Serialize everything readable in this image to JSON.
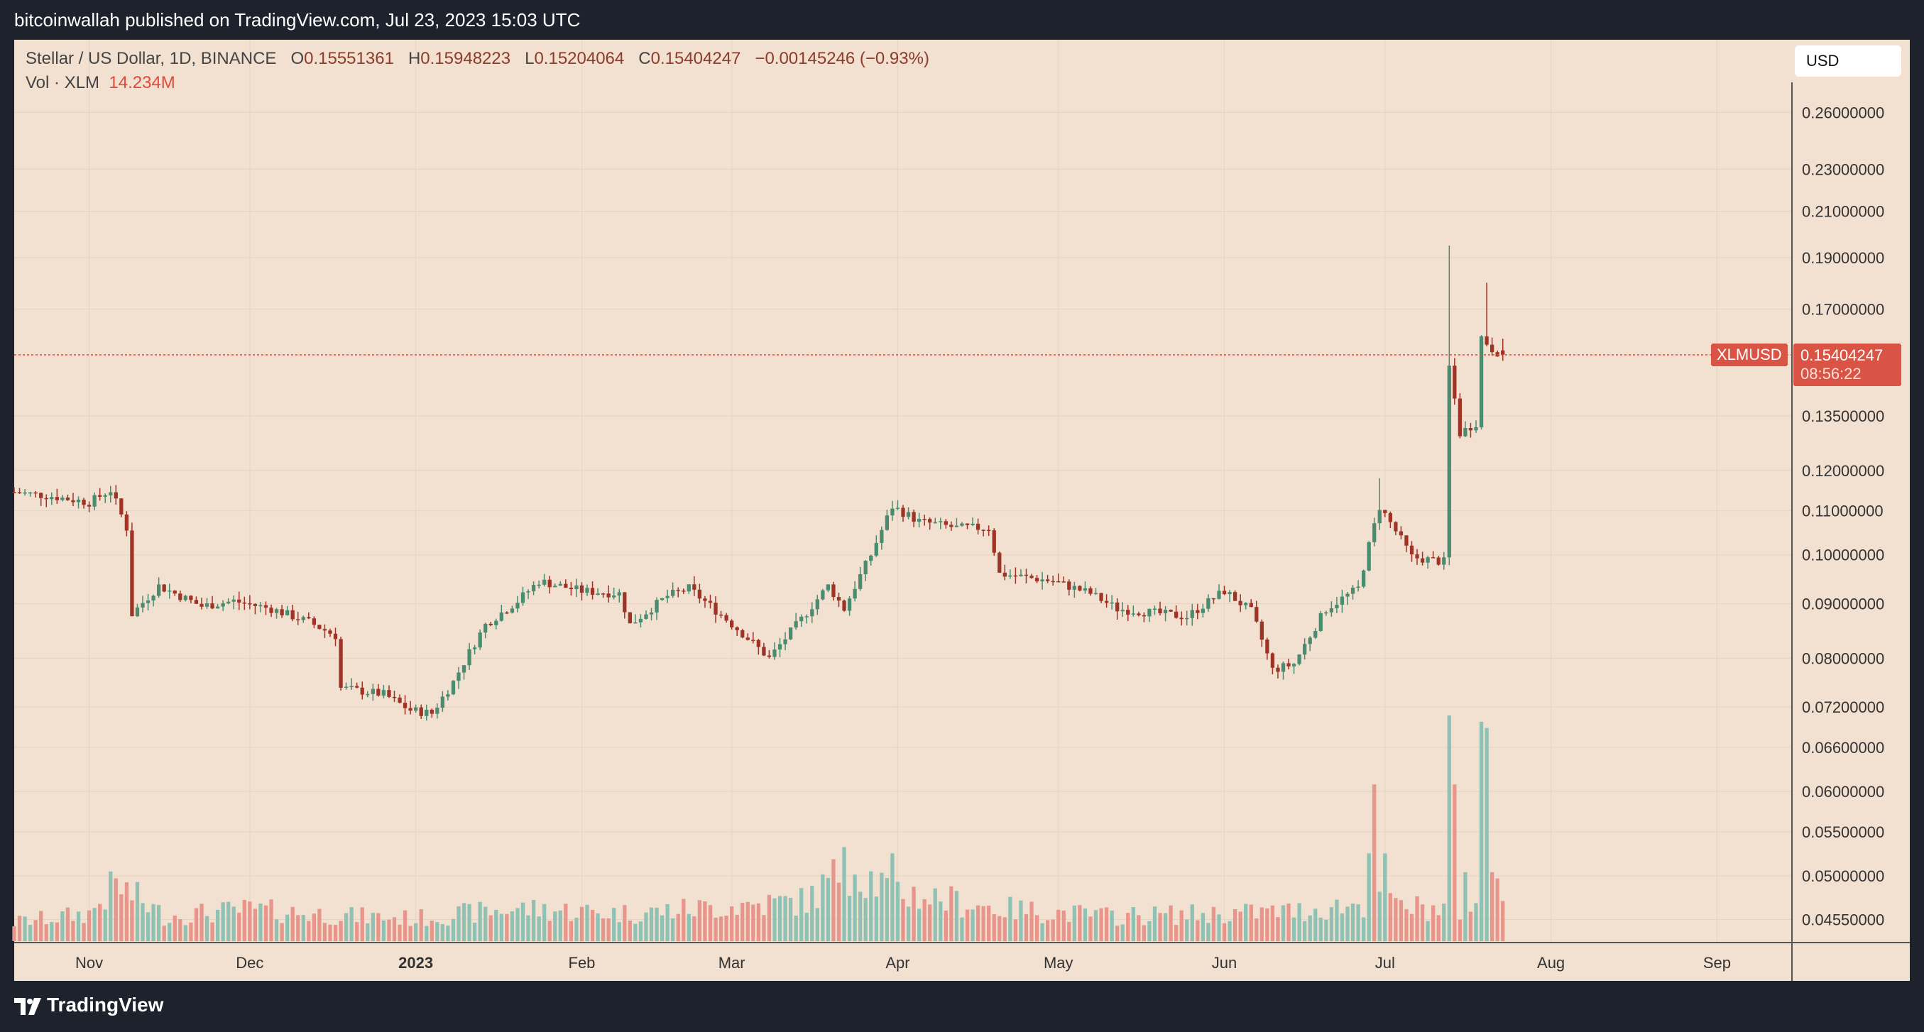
{
  "header": {
    "published": "bitcoinwallah published on TradingView.com, Jul 23, 2023 15:03 UTC"
  },
  "legend": {
    "symbol_line": "Stellar / US Dollar, 1D, BINANCE",
    "o_label": "O",
    "o": "0.15551361",
    "h_label": "H",
    "h": "0.15948223",
    "l_label": "L",
    "l": "0.15204064",
    "c_label": "C",
    "c": "0.15404247",
    "change": "−0.00145246 (−0.93%)",
    "vol_label": "Vol · XLM",
    "vol_value": "14.234M"
  },
  "currency_button": "USD",
  "price_tag": {
    "symbol": "XLMUSD",
    "price": "0.15404247",
    "countdown": "08:56:22"
  },
  "footer": {
    "brand": "TradingView"
  },
  "colors": {
    "up": "#4a8c70",
    "down": "#9e3326",
    "vol_up": "#8fc2b4",
    "vol_down": "#e8968c",
    "price_line": "#e0493c",
    "background": "#f2e0d0"
  },
  "chart_data": {
    "type": "candlestick",
    "symbol": "XLMUSD",
    "interval": "1D",
    "yaxis_ticks": [
      "0.26000000",
      "0.23000000",
      "0.21000000",
      "0.19000000",
      "0.17000000",
      "0.13500000",
      "0.12000000",
      "0.11000000",
      "0.10000000",
      "0.09000000",
      "0.08000000",
      "0.07200000",
      "0.06600000",
      "0.06000000",
      "0.05500000",
      "0.05000000",
      "0.04550000"
    ],
    "yaxis_tick_values": [
      0.26,
      0.23,
      0.21,
      0.19,
      0.17,
      0.135,
      0.12,
      0.11,
      0.1,
      0.09,
      0.08,
      0.072,
      0.066,
      0.06,
      0.055,
      0.05,
      0.0455
    ],
    "yaxis_scale": "log",
    "xaxis_ticks": [
      {
        "label": "Nov",
        "date": "2022-11-01"
      },
      {
        "label": "Dec",
        "date": "2022-12-01"
      },
      {
        "label": "2023",
        "date": "2023-01-01",
        "bold": true
      },
      {
        "label": "Feb",
        "date": "2023-02-01"
      },
      {
        "label": "Mar",
        "date": "2023-03-01"
      },
      {
        "label": "Apr",
        "date": "2023-04-01"
      },
      {
        "label": "May",
        "date": "2023-05-01"
      },
      {
        "label": "Jun",
        "date": "2023-06-01"
      },
      {
        "label": "Jul",
        "date": "2023-07-01"
      },
      {
        "label": "Aug",
        "date": "2023-08-01"
      },
      {
        "label": "Sep",
        "date": "2023-09-01"
      }
    ],
    "x_range": [
      "2022-10-18",
      "2023-09-15"
    ],
    "price_anchors": [
      [
        "2022-10-18",
        0.1145
      ],
      [
        "2022-10-25",
        0.1135
      ],
      [
        "2022-11-01",
        0.112
      ],
      [
        "2022-11-05",
        0.115
      ],
      [
        "2022-11-08",
        0.106
      ],
      [
        "2022-11-09",
        0.088
      ],
      [
        "2022-11-14",
        0.0935
      ],
      [
        "2022-11-22",
        0.0895
      ],
      [
        "2022-11-28",
        0.0905
      ],
      [
        "2022-12-05",
        0.089
      ],
      [
        "2022-12-12",
        0.0865
      ],
      [
        "2022-12-17",
        0.084
      ],
      [
        "2022-12-18",
        0.075
      ],
      [
        "2022-12-26",
        0.074
      ],
      [
        "2022-12-31",
        0.0715
      ],
      [
        "2023-01-04",
        0.071
      ],
      [
        "2023-01-08",
        0.076
      ],
      [
        "2023-01-14",
        0.086
      ],
      [
        "2023-01-20",
        0.0905
      ],
      [
        "2023-01-24",
        0.0945
      ],
      [
        "2023-02-01",
        0.0925
      ],
      [
        "2023-02-08",
        0.092
      ],
      [
        "2023-02-10",
        0.086
      ],
      [
        "2023-02-17",
        0.0915
      ],
      [
        "2023-02-21",
        0.093
      ],
      [
        "2023-02-28",
        0.087
      ],
      [
        "2023-03-08",
        0.08
      ],
      [
        "2023-03-14",
        0.087
      ],
      [
        "2023-03-19",
        0.0935
      ],
      [
        "2023-03-22",
        0.089
      ],
      [
        "2023-03-27",
        0.1
      ],
      [
        "2023-03-31",
        0.111
      ],
      [
        "2023-04-05",
        0.1075
      ],
      [
        "2023-04-12",
        0.106
      ],
      [
        "2023-04-18",
        0.106
      ],
      [
        "2023-04-20",
        0.096
      ],
      [
        "2023-04-30",
        0.0945
      ],
      [
        "2023-05-07",
        0.092
      ],
      [
        "2023-05-12",
        0.089
      ],
      [
        "2023-05-25",
        0.0875
      ],
      [
        "2023-06-01",
        0.0925
      ],
      [
        "2023-06-06",
        0.0885
      ],
      [
        "2023-06-10",
        0.078
      ],
      [
        "2023-06-14",
        0.079
      ],
      [
        "2023-06-20",
        0.089
      ],
      [
        "2023-06-26",
        0.093
      ],
      [
        "2023-06-30",
        0.111
      ],
      [
        "2023-07-06",
        0.0995
      ],
      [
        "2023-07-12",
        0.0985
      ],
      [
        "2023-07-13",
        0.15
      ],
      [
        "2023-07-15",
        0.13
      ],
      [
        "2023-07-18",
        0.133
      ],
      [
        "2023-07-19",
        0.16
      ],
      [
        "2023-07-21",
        0.156
      ],
      [
        "2023-07-23",
        0.154
      ]
    ],
    "volume_anchors": [
      [
        "2022-10-18",
        1.5
      ],
      [
        "2022-11-01",
        2.2
      ],
      [
        "2022-11-06",
        4.5
      ],
      [
        "2022-11-15",
        2.0
      ],
      [
        "2022-12-01",
        2.5
      ],
      [
        "2022-12-20",
        2.0
      ],
      [
        "2023-01-01",
        1.8
      ],
      [
        "2023-01-20",
        2.6
      ],
      [
        "2023-02-10",
        2.2
      ],
      [
        "2023-03-01",
        2.8
      ],
      [
        "2023-03-15",
        3.2
      ],
      [
        "2023-03-23",
        6.0
      ],
      [
        "2023-03-31",
        4.0
      ],
      [
        "2023-04-20",
        2.6
      ],
      [
        "2023-05-10",
        2.0
      ],
      [
        "2023-06-01",
        2.2
      ],
      [
        "2023-06-15",
        2.4
      ],
      [
        "2023-06-28",
        3.0
      ],
      [
        "2023-07-12",
        2.5
      ],
      [
        "2023-07-23",
        2.5
      ]
    ],
    "volume_spikes": [
      [
        "2023-03-22",
        7.5,
        "up"
      ],
      [
        "2023-03-31",
        7.0,
        "up"
      ],
      [
        "2023-06-28",
        7.0,
        "up"
      ],
      [
        "2023-06-29",
        12.5,
        "down"
      ],
      [
        "2023-07-01",
        7.0,
        "up"
      ],
      [
        "2023-07-13",
        18.0,
        "up"
      ],
      [
        "2023-07-14",
        12.5,
        "down"
      ],
      [
        "2023-07-16",
        5.5,
        "up"
      ],
      [
        "2023-07-19",
        17.5,
        "up"
      ],
      [
        "2023-07-20",
        17.0,
        "up"
      ],
      [
        "2023-07-21",
        5.5,
        "down"
      ],
      [
        "2023-07-22",
        5.0,
        "down"
      ],
      [
        "2023-07-23",
        3.2,
        "down"
      ]
    ],
    "volume_max": 18.0,
    "last_price": 0.15404247,
    "last_candle": {
      "date": "2023-07-23",
      "open": 0.15551361,
      "high": 0.15948223,
      "low": 0.15204064,
      "close": 0.15404247,
      "volume": "14.234M"
    }
  }
}
